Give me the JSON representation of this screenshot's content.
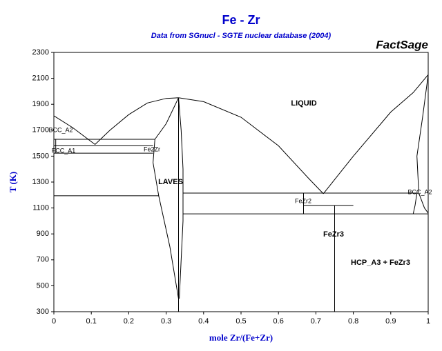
{
  "chart_data": {
    "type": "line",
    "title": "Fe - Zr",
    "subtitle": "Data from SGnucl - SGTE nuclear database (2004)",
    "brand": "FactSage",
    "x_label": "mole Zr/(Fe+Zr)",
    "y_label": "T (K)",
    "xlim": [
      0,
      1
    ],
    "ylim": [
      300,
      2300
    ],
    "xticks": [
      0,
      0.1,
      0.2,
      0.3,
      0.4,
      0.5,
      0.6,
      0.7,
      0.8,
      0.9,
      1
    ],
    "yticks": [
      300,
      500,
      700,
      900,
      1100,
      1300,
      1500,
      1700,
      1900,
      2100,
      2300
    ],
    "color": "#000000",
    "annotations": [
      "LIQUID",
      "LAVES",
      "FeZr3",
      "HCP_A3 + FeZr3",
      "BCC_A2",
      "FCC_A1",
      "Fe2Zr",
      "FeZr2",
      "BCC_A2"
    ],
    "lines": [
      {
        "x": [
          0,
          0.05,
          0.11
        ],
        "y": [
          1811,
          1720,
          1590
        ]
      },
      {
        "x": [
          0.11,
          0.15,
          0.2,
          0.25,
          0.3,
          0.333,
          0.4,
          0.5,
          0.6,
          0.68,
          0.72
        ],
        "y": [
          1590,
          1700,
          1820,
          1910,
          1945,
          1950,
          1920,
          1800,
          1580,
          1330,
          1210
        ]
      },
      {
        "x": [
          0.72,
          0.8,
          0.9,
          0.96,
          1
        ],
        "y": [
          1210,
          1500,
          1840,
          1990,
          2128
        ]
      },
      {
        "x": [
          0,
          0.27
        ],
        "y": [
          1630,
          1630
        ]
      },
      {
        "x": [
          0,
          0.265
        ],
        "y": [
          1580,
          1580
        ]
      },
      {
        "x": [
          0,
          0.265
        ],
        "y": [
          1523,
          1523
        ]
      },
      {
        "x": [
          0,
          0.28
        ],
        "y": [
          1194,
          1194
        ]
      },
      {
        "x": [
          0.333,
          0.3,
          0.27,
          0.265,
          0.28,
          0.31,
          0.333
        ],
        "y": [
          1950,
          1750,
          1630,
          1450,
          1194,
          800,
          400
        ]
      },
      {
        "x": [
          0.333,
          0.34,
          0.345,
          0.345,
          0.34,
          0.335
        ],
        "y": [
          1950,
          1700,
          1400,
          1000,
          700,
          400
        ]
      },
      {
        "x": [
          0.333,
          0.333
        ],
        "y": [
          1950,
          300
        ]
      },
      {
        "x": [
          0.345,
          0.97
        ],
        "y": [
          1215,
          1215
        ]
      },
      {
        "x": [
          0.345,
          1
        ],
        "y": [
          1055,
          1055
        ]
      },
      {
        "x": [
          0.667,
          0.8
        ],
        "y": [
          1119,
          1119
        ]
      },
      {
        "x": [
          0.667,
          0.667
        ],
        "y": [
          1215,
          1055
        ]
      },
      {
        "x": [
          0.75,
          0.75
        ],
        "y": [
          1119,
          300
        ]
      },
      {
        "x": [
          1,
          0.985,
          0.97,
          0.975,
          0.99,
          1
        ],
        "y": [
          2128,
          1800,
          1500,
          1215,
          1100,
          1060
        ]
      },
      {
        "x": [
          0.97,
          0.965,
          0.96
        ],
        "y": [
          1215,
          1120,
          1055
        ]
      },
      {
        "x": [
          0.005,
          0.005
        ],
        "y": [
          1630,
          1523
        ]
      }
    ]
  }
}
